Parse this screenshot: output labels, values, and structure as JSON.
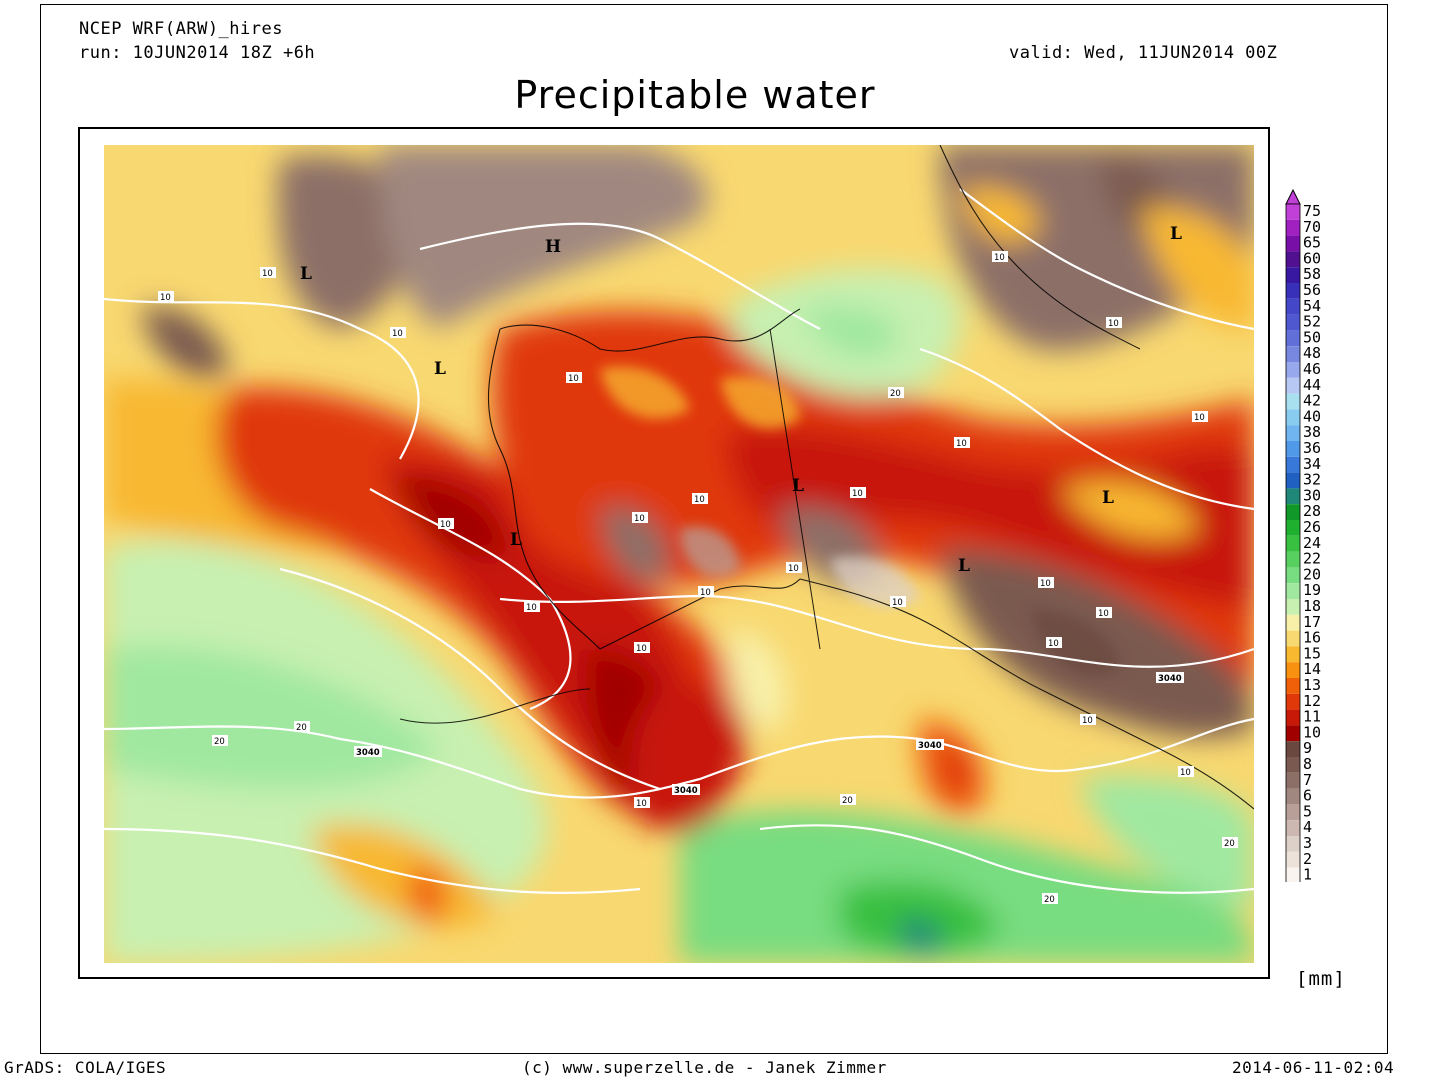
{
  "header": {
    "model": "NCEP WRF(ARW)_hires",
    "run": "run: 10JUN2014 18Z +6h",
    "valid": "valid: Wed, 11JUN2014 00Z",
    "title": "Precipitable water"
  },
  "legend": {
    "unit": "[mm]",
    "levels": [
      "75",
      "70",
      "65",
      "60",
      "58",
      "56",
      "54",
      "52",
      "50",
      "48",
      "46",
      "44",
      "42",
      "40",
      "38",
      "36",
      "34",
      "32",
      "30",
      "28",
      "26",
      "24",
      "22",
      "20",
      "19",
      "18",
      "17",
      "16",
      "15",
      "14",
      "13",
      "12",
      "11",
      "10",
      "9",
      "8",
      "7",
      "6",
      "5",
      "4",
      "3",
      "2",
      "1"
    ],
    "colors": [
      "#c040d8",
      "#a020c0",
      "#7810a8",
      "#501090",
      "#3818a0",
      "#3830b8",
      "#4448c8",
      "#5058d0",
      "#6070d8",
      "#7888e0",
      "#98a8ec",
      "#b8c8f4",
      "#a8e0f0",
      "#88ccf0",
      "#70b4f0",
      "#5098e8",
      "#3878d8",
      "#2060c0",
      "#208878",
      "#109828",
      "#20b030",
      "#38c040",
      "#58d060",
      "#78dc80",
      "#a0e8a0",
      "#c8f0b0",
      "#f8f0a8",
      "#f8d870",
      "#f8b830",
      "#f89010",
      "#f06008",
      "#e03808",
      "#c81808",
      "#a00000",
      "#6a4840",
      "#7a5a50",
      "#8c7068",
      "#a08880",
      "#b8a098",
      "#ccb8b0",
      "#ddd0c8",
      "#ece2da",
      "#faf4f0"
    ]
  },
  "map": {
    "pressure_labels": [
      {
        "text": "H"
      },
      {
        "text": "L"
      },
      {
        "text": "L"
      },
      {
        "text": "L"
      },
      {
        "text": "L"
      },
      {
        "text": "L"
      },
      {
        "text": "L"
      },
      {
        "text": "L"
      }
    ],
    "contour_labels": [
      "10",
      "10",
      "10",
      "10",
      "10",
      "10",
      "10",
      "10",
      "10",
      "10",
      "10",
      "10",
      "10",
      "10",
      "10",
      "10",
      "10",
      "10",
      "10",
      "10",
      "10",
      "10",
      "10",
      "20",
      "20",
      "20",
      "20",
      "20",
      "20",
      "3040",
      "3040",
      "3040",
      "3040"
    ]
  },
  "footer": {
    "left": "GrADS: COLA/IGES",
    "center": "(c) www.superzelle.de - Janek Zimmer",
    "right": "2014-06-11-02:04"
  }
}
